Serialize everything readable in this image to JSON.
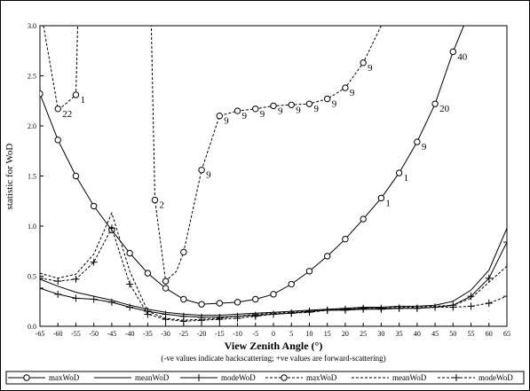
{
  "chart_data": {
    "type": "line",
    "ylabel": "statistic for WoD",
    "xlabel": "View Zenith Angle (°)",
    "subtitle": "(-ve values indicate backscattering; +ve values are forward-scattering)",
    "xlim": [
      -65,
      65
    ],
    "ylim": [
      0,
      3.0
    ],
    "x_ticks": [
      "-65",
      "-60",
      "-55",
      "-50",
      "-45",
      "-40",
      "-35",
      "-30",
      "-25",
      "-20",
      "-15",
      "-10",
      "-5",
      "0",
      "5",
      "10",
      "15",
      "20",
      "25",
      "30",
      "35",
      "40",
      "45",
      "50",
      "55",
      "60",
      "65"
    ],
    "y_ticks": [
      "0.0",
      "0.5",
      "1.0",
      "1.5",
      "2.0",
      "2.5",
      "3.0"
    ],
    "grid": false,
    "legend_position": "bottom",
    "series": [
      {
        "name": "maxWoD",
        "style": "solid",
        "marker": "circle",
        "x": [
          -65,
          -60,
          -55,
          -50,
          -45,
          -40,
          -35,
          -30,
          -25,
          -20,
          -15,
          -10,
          -5,
          0,
          5,
          10,
          15,
          20,
          25,
          30,
          35,
          40,
          45,
          50,
          53
        ],
        "y": [
          2.32,
          1.86,
          1.5,
          1.2,
          0.96,
          0.73,
          0.53,
          0.38,
          0.27,
          0.22,
          0.23,
          0.24,
          0.27,
          0.32,
          0.42,
          0.55,
          0.7,
          0.87,
          1.07,
          1.28,
          1.53,
          1.84,
          2.22,
          2.74,
          3.0
        ],
        "markers": [
          true,
          true,
          true,
          true,
          true,
          true,
          true,
          true,
          true,
          true,
          true,
          true,
          true,
          true,
          true,
          true,
          true,
          true,
          true,
          true,
          true,
          true,
          true,
          true,
          false
        ]
      },
      {
        "name": "meanWoD",
        "style": "solid",
        "marker": "none",
        "x": [
          -65,
          -60,
          -55,
          -50,
          -45,
          -40,
          -35,
          -30,
          -25,
          -20,
          -15,
          -10,
          -5,
          0,
          5,
          10,
          15,
          20,
          25,
          30,
          35,
          40,
          45,
          50,
          55,
          60,
          65
        ],
        "y": [
          0.47,
          0.4,
          0.34,
          0.3,
          0.26,
          0.21,
          0.17,
          0.14,
          0.12,
          0.11,
          0.11,
          0.12,
          0.13,
          0.14,
          0.15,
          0.16,
          0.17,
          0.18,
          0.19,
          0.19,
          0.2,
          0.2,
          0.21,
          0.25,
          0.36,
          0.56,
          0.98
        ]
      },
      {
        "name": "modeWoD",
        "style": "solid",
        "marker": "plus",
        "x": [
          -65,
          -60,
          -55,
          -50,
          -45,
          -40,
          -35,
          -30,
          -25,
          -20,
          -15,
          -10,
          -5,
          0,
          5,
          10,
          15,
          20,
          25,
          30,
          35,
          40,
          45,
          50,
          55,
          60,
          65
        ],
        "y": [
          0.38,
          0.32,
          0.28,
          0.27,
          0.24,
          0.19,
          0.15,
          0.12,
          0.1,
          0.09,
          0.09,
          0.1,
          0.11,
          0.12,
          0.13,
          0.15,
          0.16,
          0.16,
          0.17,
          0.17,
          0.18,
          0.18,
          0.19,
          0.21,
          0.3,
          0.48,
          0.84
        ]
      },
      {
        "name": "maxWoD",
        "style": "dashed",
        "marker": "circle",
        "x": [
          -64,
          -60,
          -58.5,
          -55,
          -54.5,
          -34,
          -33,
          -30,
          -27,
          -25,
          -20,
          -15,
          -10,
          -5,
          0,
          5,
          10,
          15,
          20,
          25,
          30
        ],
        "y": [
          3.0,
          2.17,
          2.2,
          2.31,
          3.0,
          3.0,
          1.26,
          0.45,
          0.55,
          0.74,
          1.56,
          2.1,
          2.15,
          2.17,
          2.2,
          2.21,
          2.22,
          2.27,
          2.38,
          2.63,
          3.0
        ],
        "markers": [
          false,
          true,
          false,
          true,
          false,
          false,
          true,
          true,
          false,
          true,
          true,
          true,
          true,
          true,
          true,
          true,
          true,
          true,
          true,
          true,
          false
        ]
      },
      {
        "name": "meanWoD",
        "style": "dashed",
        "marker": "none",
        "x": [
          -65,
          -60,
          -55,
          -50,
          -45,
          -40,
          -35,
          -30,
          -25,
          -20,
          -15,
          -10,
          -5,
          0,
          5,
          10,
          15,
          20,
          25,
          30,
          35,
          40,
          45,
          50,
          55,
          60,
          65
        ],
        "y": [
          0.53,
          0.48,
          0.52,
          0.72,
          1.13,
          0.55,
          0.15,
          0.08,
          0.06,
          0.07,
          0.08,
          0.1,
          0.12,
          0.13,
          0.14,
          0.15,
          0.16,
          0.17,
          0.18,
          0.18,
          0.19,
          0.19,
          0.2,
          0.21,
          0.28,
          0.44,
          0.6
        ]
      },
      {
        "name": "modeWoD",
        "style": "dashed",
        "marker": "plus",
        "x": [
          -65,
          -60,
          -55,
          -50,
          -45,
          -40,
          -35,
          -30,
          -25,
          -20,
          -15,
          -10,
          -5,
          0,
          5,
          10,
          15,
          20,
          25,
          30,
          35,
          40,
          45,
          50,
          55,
          60,
          65
        ],
        "y": [
          0.48,
          0.45,
          0.47,
          0.64,
          0.98,
          0.42,
          0.12,
          0.07,
          0.05,
          0.06,
          0.07,
          0.08,
          0.1,
          0.12,
          0.13,
          0.14,
          0.16,
          0.17,
          0.18,
          0.18,
          0.18,
          0.18,
          0.19,
          0.19,
          0.2,
          0.23,
          0.3
        ]
      }
    ],
    "annotations": [
      {
        "text": "22",
        "x": -60,
        "y": 2.17
      },
      {
        "text": "1",
        "x": -55,
        "y": 2.31
      },
      {
        "text": "2",
        "x": -33,
        "y": 1.26
      },
      {
        "text": "9",
        "x": -20,
        "y": 1.56
      },
      {
        "text": "9",
        "x": -15,
        "y": 2.1
      },
      {
        "text": "9",
        "x": -10,
        "y": 2.15
      },
      {
        "text": "9",
        "x": -5,
        "y": 2.17
      },
      {
        "text": "9",
        "x": 0,
        "y": 2.2
      },
      {
        "text": "9",
        "x": 5,
        "y": 2.21
      },
      {
        "text": "9",
        "x": 10,
        "y": 2.22
      },
      {
        "text": "9",
        "x": 15,
        "y": 2.27
      },
      {
        "text": "9",
        "x": 20,
        "y": 2.38
      },
      {
        "text": "9",
        "x": 25,
        "y": 2.63
      },
      {
        "text": "1",
        "x": 30,
        "y": 1.28
      },
      {
        "text": "1",
        "x": 35,
        "y": 1.53
      },
      {
        "text": "9",
        "x": 40,
        "y": 1.84
      },
      {
        "text": "20",
        "x": 45,
        "y": 2.22
      },
      {
        "text": "40",
        "x": 50,
        "y": 2.74
      }
    ]
  }
}
